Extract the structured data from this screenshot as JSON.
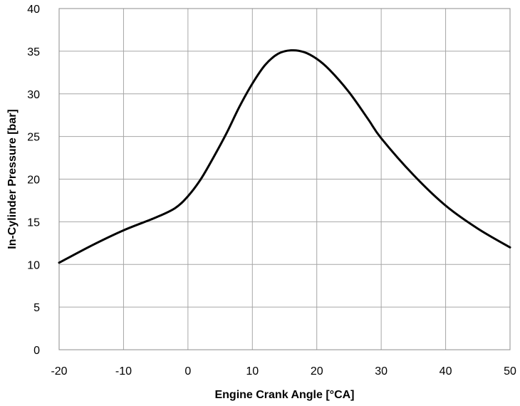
{
  "chart_data": {
    "type": "line",
    "title": "",
    "xlabel": "Engine Crank Angle [°CA]",
    "ylabel": "In-Cylinder Pressure [bar]",
    "xlim": [
      -20,
      50
    ],
    "ylim": [
      0,
      40
    ],
    "xticks": [
      -20,
      -10,
      0,
      10,
      20,
      30,
      40,
      50
    ],
    "yticks": [
      0,
      5,
      10,
      15,
      20,
      25,
      30,
      35,
      40
    ],
    "grid": true,
    "legend": "none",
    "series": [
      {
        "name": "In-Cylinder Pressure",
        "color": "#000000",
        "x": [
          -20,
          -15,
          -10,
          -5,
          -2,
          0,
          2,
          4,
          6,
          8,
          10,
          12,
          14,
          16,
          18,
          20,
          22,
          25,
          28,
          30,
          35,
          40,
          45,
          50
        ],
        "y": [
          10.2,
          12.2,
          14.0,
          15.5,
          16.6,
          18.0,
          20.0,
          22.6,
          25.4,
          28.5,
          31.2,
          33.4,
          34.7,
          35.1,
          34.9,
          34.1,
          32.8,
          30.2,
          27.0,
          24.8,
          20.5,
          16.9,
          14.2,
          12.0
        ]
      }
    ]
  }
}
